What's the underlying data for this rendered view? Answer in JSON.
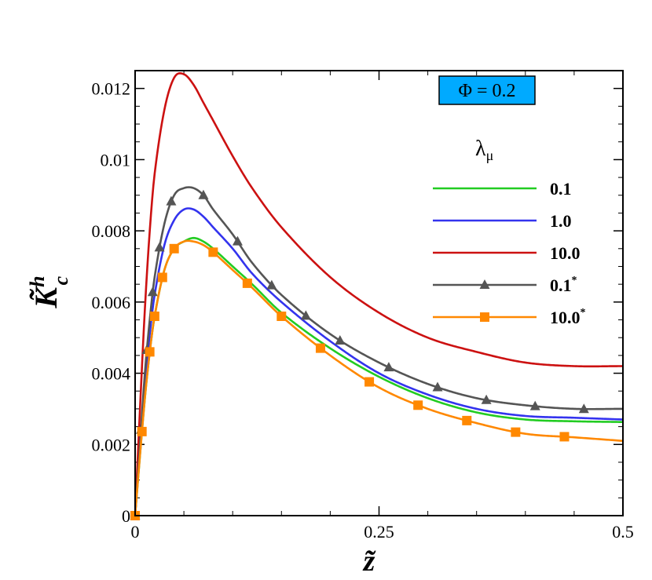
{
  "chart_data": {
    "type": "line",
    "title": "",
    "xlabel": "z̃",
    "ylabel": "K̃",
    "ylabel_sup": "h",
    "ylabel_sub": "c",
    "xlim": [
      0,
      0.5
    ],
    "ylim": [
      0,
      0.0125
    ],
    "x_ticks": [
      {
        "value": 0,
        "label": "0"
      },
      {
        "value": 0.25,
        "label": "0.25"
      },
      {
        "value": 0.5,
        "label": "0.5"
      }
    ],
    "y_ticks": [
      {
        "value": 0,
        "label": "0"
      },
      {
        "value": 0.002,
        "label": "0.002"
      },
      {
        "value": 0.004,
        "label": "0.004"
      },
      {
        "value": 0.006,
        "label": "0.006"
      },
      {
        "value": 0.008,
        "label": "0.008"
      },
      {
        "value": 0.01,
        "label": "0.01"
      },
      {
        "value": 0.012,
        "label": "0.012"
      }
    ],
    "annotation": {
      "text": "Φ = 0.2",
      "bg_color": "#00aaff"
    },
    "legend": {
      "title": "λ",
      "title_sub": "μ",
      "position": "top-right"
    },
    "series": [
      {
        "name": "0.1",
        "sup": "",
        "color": "#22cc22",
        "marker": "none",
        "x": [
          0,
          0.005,
          0.01,
          0.015,
          0.02,
          0.03,
          0.04,
          0.05,
          0.06,
          0.07,
          0.08,
          0.1,
          0.12,
          0.15,
          0.2,
          0.25,
          0.3,
          0.35,
          0.4,
          0.45,
          0.5
        ],
        "y": [
          0,
          0.0017,
          0.0033,
          0.0046,
          0.0056,
          0.0069,
          0.0075,
          0.0077,
          0.0078,
          0.0077,
          0.0075,
          0.007,
          0.0065,
          0.0057,
          0.0047,
          0.0039,
          0.0033,
          0.0029,
          0.0027,
          0.00265,
          0.00263
        ]
      },
      {
        "name": "1.0",
        "sup": "",
        "color": "#3333ee",
        "marker": "none",
        "x": [
          0,
          0.005,
          0.01,
          0.015,
          0.02,
          0.03,
          0.04,
          0.05,
          0.06,
          0.07,
          0.08,
          0.1,
          0.12,
          0.15,
          0.2,
          0.25,
          0.3,
          0.35,
          0.4,
          0.45,
          0.5
        ],
        "y": [
          0,
          0.0019,
          0.0037,
          0.0051,
          0.0062,
          0.0076,
          0.0083,
          0.0086,
          0.0086,
          0.0084,
          0.0081,
          0.0075,
          0.0068,
          0.006,
          0.0049,
          0.004,
          0.0034,
          0.003,
          0.0028,
          0.00275,
          0.0027
        ]
      },
      {
        "name": "10.0",
        "sup": "",
        "color": "#cc1111",
        "marker": "none",
        "x": [
          0,
          0.005,
          0.01,
          0.015,
          0.02,
          0.03,
          0.04,
          0.05,
          0.06,
          0.07,
          0.08,
          0.1,
          0.12,
          0.15,
          0.2,
          0.25,
          0.3,
          0.35,
          0.4,
          0.45,
          0.5
        ],
        "y": [
          0,
          0.003,
          0.0058,
          0.008,
          0.0096,
          0.0114,
          0.0123,
          0.0124,
          0.0121,
          0.0116,
          0.0111,
          0.0101,
          0.0092,
          0.0081,
          0.0067,
          0.0057,
          0.005,
          0.0046,
          0.0043,
          0.0042,
          0.0042
        ]
      },
      {
        "name": "0.1",
        "sup": "*",
        "color": "#555555",
        "marker": "triangle",
        "x": [
          0,
          0.005,
          0.01,
          0.015,
          0.02,
          0.03,
          0.04,
          0.05,
          0.06,
          0.07,
          0.08,
          0.1,
          0.12,
          0.15,
          0.2,
          0.25,
          0.3,
          0.35,
          0.4,
          0.45,
          0.5
        ],
        "y": [
          0,
          0.002,
          0.004,
          0.0055,
          0.0067,
          0.0082,
          0.009,
          0.0092,
          0.0092,
          0.009,
          0.0086,
          0.0079,
          0.0071,
          0.0062,
          0.0051,
          0.0043,
          0.0037,
          0.0033,
          0.0031,
          0.003,
          0.003
        ],
        "marker_x": [
          0,
          0.006,
          0.012,
          0.018,
          0.025,
          0.037,
          0.07,
          0.105,
          0.14,
          0.175,
          0.21,
          0.26,
          0.31,
          0.36,
          0.41,
          0.46
        ]
      },
      {
        "name": "10.0",
        "sup": "*",
        "color": "#ff8800",
        "marker": "square",
        "x": [
          0,
          0.005,
          0.01,
          0.015,
          0.02,
          0.03,
          0.04,
          0.05,
          0.06,
          0.07,
          0.08,
          0.1,
          0.12,
          0.15,
          0.2,
          0.25,
          0.3,
          0.35,
          0.4,
          0.45,
          0.5
        ],
        "y": [
          0,
          0.0017,
          0.0033,
          0.0046,
          0.0056,
          0.0069,
          0.0075,
          0.0077,
          0.0077,
          0.0076,
          0.0074,
          0.0069,
          0.0064,
          0.0056,
          0.0045,
          0.0036,
          0.003,
          0.0026,
          0.0023,
          0.0022,
          0.0021
        ],
        "marker_x": [
          0,
          0.007,
          0.015,
          0.02,
          0.028,
          0.04,
          0.08,
          0.115,
          0.15,
          0.19,
          0.24,
          0.29,
          0.34,
          0.39,
          0.44
        ]
      }
    ]
  }
}
